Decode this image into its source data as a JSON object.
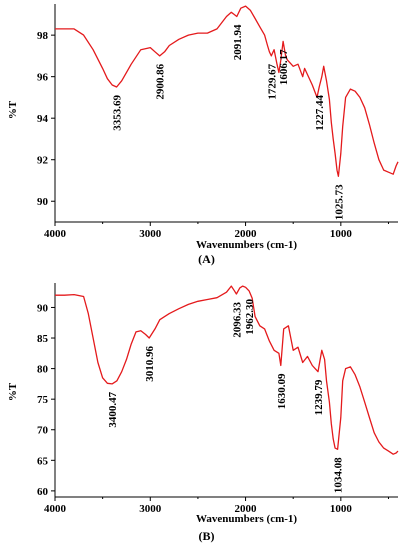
{
  "chart_data": [
    {
      "type": "line",
      "panel_label": "(A)",
      "xlabel": "Wavenumbers (cm-1)",
      "ylabel": "%T",
      "xlim": [
        4000,
        400
      ],
      "ylim": [
        89,
        99.5
      ],
      "x_ticks": [
        4000,
        3000,
        2000,
        1000
      ],
      "y_ticks": [
        90,
        92,
        94,
        96,
        98
      ],
      "line_color": "#e41a1c",
      "grid": false,
      "series": [
        {
          "x": [
            4000,
            3900,
            3800,
            3700,
            3600,
            3500,
            3450,
            3400,
            3353.69,
            3300,
            3200,
            3100,
            3000,
            2950,
            2900.86,
            2850,
            2800,
            2700,
            2600,
            2500,
            2400,
            2300,
            2200,
            2150,
            2120,
            2091.94,
            2050,
            2000,
            1950,
            1900,
            1850,
            1800,
            1770,
            1750,
            1729.67,
            1700,
            1670,
            1650,
            1630,
            1606.17,
            1580,
            1560,
            1500,
            1450,
            1400,
            1380,
            1300,
            1250,
            1227.44,
            1200,
            1180,
            1150,
            1120,
            1100,
            1080,
            1060,
            1040,
            1025.73,
            1000,
            980,
            950,
            900,
            850,
            800,
            750,
            700,
            650,
            600,
            550,
            500,
            450,
            420,
            400
          ],
          "values": [
            98.3,
            98.3,
            98.3,
            98.0,
            97.3,
            96.4,
            95.9,
            95.6,
            95.5,
            95.8,
            96.6,
            97.3,
            97.4,
            97.2,
            97.0,
            97.2,
            97.5,
            97.8,
            98.0,
            98.1,
            98.1,
            98.3,
            98.9,
            99.1,
            99.0,
            98.9,
            99.3,
            99.4,
            99.2,
            98.8,
            98.4,
            98.0,
            97.5,
            97.2,
            97.0,
            97.3,
            96.6,
            96.2,
            96.8,
            97.7,
            97.0,
            96.8,
            96.5,
            96.6,
            96.0,
            96.4,
            95.6,
            95.0,
            95.5,
            96.0,
            96.5,
            95.8,
            94.9,
            93.8,
            93.0,
            92.3,
            91.5,
            91.2,
            92.3,
            93.6,
            95.0,
            95.4,
            95.3,
            95.0,
            94.5,
            93.7,
            92.8,
            92.0,
            91.5,
            91.4,
            91.3,
            91.7,
            91.9
          ]
        }
      ],
      "annotations": [
        {
          "text": "3353.69",
          "x": 3353.69
        },
        {
          "text": "2900.86",
          "x": 2900.86
        },
        {
          "text": "2091.94",
          "x": 2091.94
        },
        {
          "text": "1729.67",
          "x": 1729.67
        },
        {
          "text": "1606.17",
          "x": 1606.17
        },
        {
          "text": "1227.44",
          "x": 1227.44
        },
        {
          "text": "1025.73",
          "x": 1025.73
        }
      ]
    },
    {
      "type": "line",
      "panel_label": "(B)",
      "xlabel": "Wavenumbers (cm-1)",
      "ylabel": "%T",
      "xlim": [
        4000,
        400
      ],
      "ylim": [
        59,
        94
      ],
      "x_ticks": [
        4000,
        3000,
        2000,
        1000
      ],
      "y_ticks": [
        60,
        65,
        70,
        75,
        80,
        85,
        90
      ],
      "line_color": "#e41a1c",
      "grid": false,
      "series": [
        {
          "x": [
            4000,
            3900,
            3800,
            3700,
            3650,
            3600,
            3550,
            3500,
            3450,
            3400.47,
            3350,
            3300,
            3250,
            3200,
            3150,
            3100,
            3050,
            3010.96,
            2950,
            2900,
            2850,
            2800,
            2700,
            2600,
            2500,
            2400,
            2300,
            2200,
            2150,
            2120,
            2096.33,
            2060,
            2030,
            2000,
            1962.3,
            1930,
            1900,
            1850,
            1800,
            1750,
            1700,
            1650,
            1630.09,
            1600,
            1550,
            1500,
            1450,
            1400,
            1350,
            1300,
            1270,
            1239.79,
            1200,
            1170,
            1150,
            1120,
            1100,
            1080,
            1060,
            1034.08,
            1000,
            980,
            950,
            900,
            850,
            800,
            750,
            700,
            650,
            600,
            550,
            500,
            450,
            420,
            400
          ],
          "values": [
            92.0,
            92.0,
            92.1,
            91.8,
            89.0,
            85.0,
            81.0,
            78.5,
            77.6,
            77.5,
            78.0,
            79.5,
            81.5,
            84.0,
            86.0,
            86.2,
            85.6,
            85.0,
            86.5,
            88.0,
            88.5,
            89.0,
            89.8,
            90.5,
            91.0,
            91.3,
            91.6,
            92.5,
            93.5,
            92.8,
            92.2,
            93.2,
            93.5,
            93.3,
            92.7,
            91.5,
            88.5,
            87.0,
            86.5,
            84.5,
            83.0,
            82.5,
            80.5,
            86.5,
            87.0,
            83.0,
            83.5,
            81.0,
            82.0,
            80.5,
            80.0,
            79.5,
            83.0,
            81.5,
            78.0,
            74.5,
            71.0,
            68.5,
            67.0,
            66.8,
            72.0,
            78.0,
            80.0,
            80.3,
            79.0,
            77.0,
            74.5,
            72.0,
            69.5,
            68.0,
            67.0,
            66.5,
            66.0,
            66.2,
            66.5
          ]
        }
      ],
      "annotations": [
        {
          "text": "3400.47",
          "x": 3400.47
        },
        {
          "text": "3010.96",
          "x": 3010.96
        },
        {
          "text": "2096.33",
          "x": 2096.33
        },
        {
          "text": "1962.30",
          "x": 1962.3
        },
        {
          "text": "1630.09",
          "x": 1630.09
        },
        {
          "text": "1239.79",
          "x": 1239.79
        },
        {
          "text": "1034.08",
          "x": 1034.08
        }
      ]
    }
  ]
}
